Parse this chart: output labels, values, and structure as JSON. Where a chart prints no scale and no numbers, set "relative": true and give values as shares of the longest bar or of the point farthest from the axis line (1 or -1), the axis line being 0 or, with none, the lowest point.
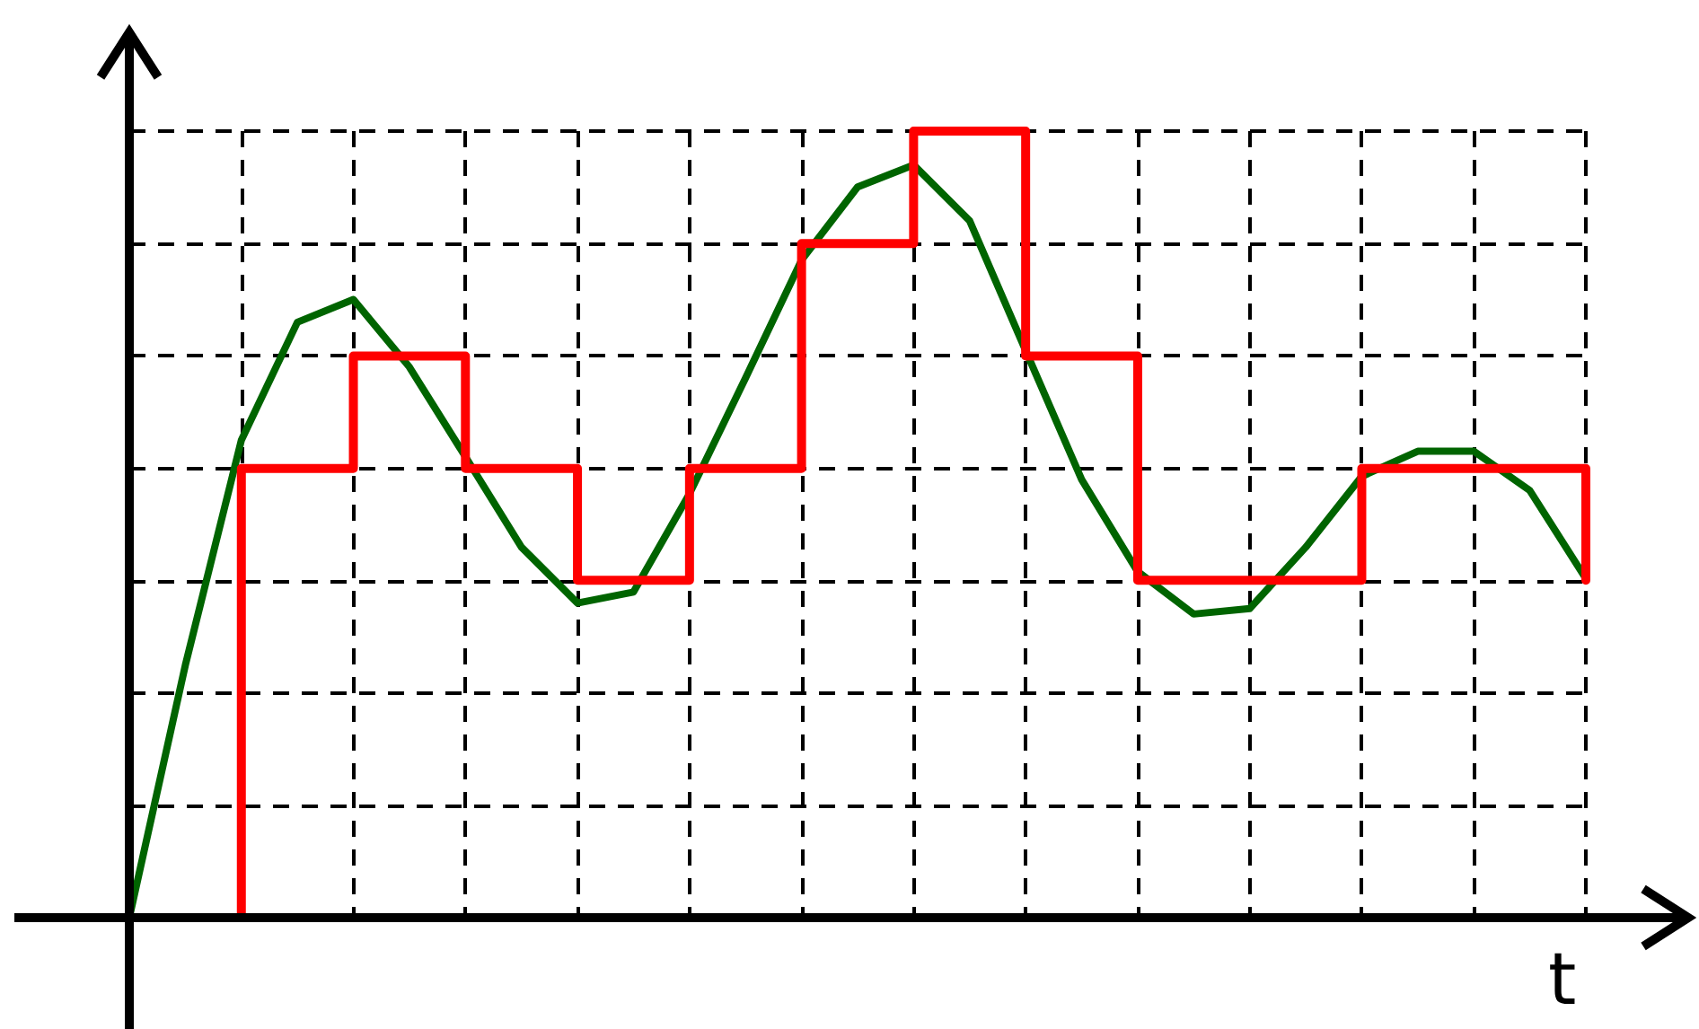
{
  "chart_data": {
    "type": "line",
    "xlabel": "t",
    "relative": true,
    "grid": true,
    "marker": "none",
    "categories": [
      null,
      null,
      null,
      null,
      null,
      null,
      null,
      null,
      null,
      null,
      null,
      null,
      null,
      null,
      null,
      null,
      null,
      null,
      null,
      null,
      null,
      null,
      null,
      null,
      null,
      null,
      null
    ],
    "series": [
      {
        "color": "#006400",
        "values": [
          0,
          0.321,
          0.607,
          0.757,
          0.786,
          0.7,
          0.586,
          0.471,
          0.4,
          0.414,
          0.539,
          0.686,
          0.836,
          0.929,
          0.957,
          0.886,
          0.721,
          0.557,
          0.44,
          0.386,
          0.393,
          0.471,
          0.561,
          0.593,
          0.593,
          0.543,
          0.431
        ]
      },
      {
        "type": "step",
        "color": "#ff0000",
        "values": [
          0,
          0,
          0.571,
          0.571,
          0.714,
          0.714,
          0.571,
          0.571,
          0.429,
          0.429,
          0.571,
          0.571,
          0.857,
          0.857,
          1,
          1,
          0.714,
          0.714,
          0.429,
          0.429,
          0.429,
          0.429,
          0.571,
          0.571,
          0.571,
          0.571,
          0.429
        ]
      }
    ]
  }
}
